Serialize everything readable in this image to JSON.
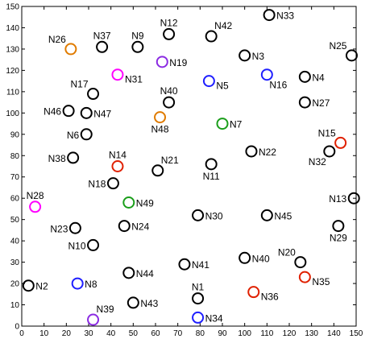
{
  "chart_data": {
    "type": "scatter",
    "title": "",
    "xlabel": "",
    "ylabel": "",
    "xlim": [
      0,
      150
    ],
    "ylim": [
      0,
      150
    ],
    "grid": false,
    "x_ticks": [
      0,
      10,
      20,
      30,
      40,
      50,
      60,
      70,
      80,
      90,
      100,
      110,
      120,
      130,
      140,
      150
    ],
    "y_ticks": [
      0,
      10,
      20,
      30,
      40,
      50,
      60,
      70,
      80,
      90,
      100,
      110,
      120,
      130,
      140,
      150
    ],
    "colors": {
      "black": "#000000",
      "orange": "#e07b00",
      "magenta": "#ff00ff",
      "purple": "#8b2be2",
      "blue": "#1f1fff",
      "green": "#1a9e1a",
      "red": "#e02000"
    },
    "points": [
      {
        "name": "N1",
        "x": 79,
        "y": 13,
        "color": "black",
        "label_pos": "above"
      },
      {
        "name": "N2",
        "x": 3,
        "y": 19,
        "color": "black",
        "label_pos": "right"
      },
      {
        "name": "N3",
        "x": 100,
        "y": 127,
        "color": "black",
        "label_pos": "right"
      },
      {
        "name": "N4",
        "x": 127,
        "y": 117,
        "color": "black",
        "label_pos": "right"
      },
      {
        "name": "N5",
        "x": 84,
        "y": 115,
        "color": "blue",
        "label_pos": "right-below"
      },
      {
        "name": "N6",
        "x": 29,
        "y": 90,
        "color": "black",
        "label_pos": "left"
      },
      {
        "name": "N7",
        "x": 90,
        "y": 95,
        "color": "green",
        "label_pos": "right"
      },
      {
        "name": "N8",
        "x": 25,
        "y": 20,
        "color": "blue",
        "label_pos": "right"
      },
      {
        "name": "N9",
        "x": 52,
        "y": 131,
        "color": "black",
        "label_pos": "above"
      },
      {
        "name": "N10",
        "x": 32,
        "y": 38,
        "color": "black",
        "label_pos": "left"
      },
      {
        "name": "N11",
        "x": 85,
        "y": 76,
        "color": "black",
        "label_pos": "below"
      },
      {
        "name": "N12",
        "x": 66,
        "y": 137,
        "color": "black",
        "label_pos": "above"
      },
      {
        "name": "N13",
        "x": 149,
        "y": 60,
        "color": "black",
        "label_pos": "left"
      },
      {
        "name": "N14",
        "x": 43,
        "y": 75,
        "color": "red",
        "label_pos": "above"
      },
      {
        "name": "N15",
        "x": 143,
        "y": 86,
        "color": "red",
        "label_pos": "above-left"
      },
      {
        "name": "N16",
        "x": 110,
        "y": 118,
        "color": "blue",
        "label_pos": "below-right"
      },
      {
        "name": "N17",
        "x": 32,
        "y": 109,
        "color": "black",
        "label_pos": "above-left"
      },
      {
        "name": "N18",
        "x": 41,
        "y": 67,
        "color": "black",
        "label_pos": "left"
      },
      {
        "name": "N19",
        "x": 63,
        "y": 124,
        "color": "purple",
        "label_pos": "right"
      },
      {
        "name": "N20",
        "x": 125,
        "y": 30,
        "color": "black",
        "label_pos": "above-left"
      },
      {
        "name": "N21",
        "x": 61,
        "y": 73,
        "color": "black",
        "label_pos": "above-right"
      },
      {
        "name": "N22",
        "x": 103,
        "y": 82,
        "color": "black",
        "label_pos": "right"
      },
      {
        "name": "N23",
        "x": 24,
        "y": 46,
        "color": "black",
        "label_pos": "left"
      },
      {
        "name": "N24",
        "x": 46,
        "y": 47,
        "color": "black",
        "label_pos": "right"
      },
      {
        "name": "N25",
        "x": 148,
        "y": 127,
        "color": "black",
        "label_pos": "above-left"
      },
      {
        "name": "N26",
        "x": 22,
        "y": 130,
        "color": "orange",
        "label_pos": "above-left"
      },
      {
        "name": "N27",
        "x": 127,
        "y": 105,
        "color": "black",
        "label_pos": "right"
      },
      {
        "name": "N28",
        "x": 6,
        "y": 56,
        "color": "magenta",
        "label_pos": "above"
      },
      {
        "name": "N29",
        "x": 142,
        "y": 47,
        "color": "black",
        "label_pos": "below"
      },
      {
        "name": "N30",
        "x": 79,
        "y": 52,
        "color": "black",
        "label_pos": "right"
      },
      {
        "name": "N31",
        "x": 43,
        "y": 118,
        "color": "magenta",
        "label_pos": "right-below"
      },
      {
        "name": "N32",
        "x": 138,
        "y": 82,
        "color": "black",
        "label_pos": "below-left"
      },
      {
        "name": "N33",
        "x": 111,
        "y": 146,
        "color": "black",
        "label_pos": "right"
      },
      {
        "name": "N34",
        "x": 79,
        "y": 4,
        "color": "blue",
        "label_pos": "right"
      },
      {
        "name": "N35",
        "x": 127,
        "y": 23,
        "color": "red",
        "label_pos": "right-below"
      },
      {
        "name": "N36",
        "x": 104,
        "y": 16,
        "color": "red",
        "label_pos": "right-below"
      },
      {
        "name": "N37",
        "x": 36,
        "y": 131,
        "color": "black",
        "label_pos": "above"
      },
      {
        "name": "N38",
        "x": 23,
        "y": 79,
        "color": "black",
        "label_pos": "left"
      },
      {
        "name": "N39",
        "x": 32,
        "y": 3,
        "color": "purple",
        "label_pos": "above-right"
      },
      {
        "name": "N40",
        "x": 66,
        "y": 105,
        "color": "black",
        "label_pos": "above"
      },
      {
        "name": "N40",
        "x": 100,
        "y": 32,
        "color": "black",
        "label_pos": "right"
      },
      {
        "name": "N41",
        "x": 73,
        "y": 29,
        "color": "black",
        "label_pos": "right"
      },
      {
        "name": "N42",
        "x": 85,
        "y": 136,
        "color": "black",
        "label_pos": "above-right"
      },
      {
        "name": "N43",
        "x": 50,
        "y": 11,
        "color": "black",
        "label_pos": "right"
      },
      {
        "name": "N44",
        "x": 48,
        "y": 25,
        "color": "black",
        "label_pos": "right"
      },
      {
        "name": "N45",
        "x": 110,
        "y": 52,
        "color": "black",
        "label_pos": "right"
      },
      {
        "name": "N46",
        "x": 21,
        "y": 101,
        "color": "black",
        "label_pos": "left"
      },
      {
        "name": "N47",
        "x": 29,
        "y": 100,
        "color": "black",
        "label_pos": "right"
      },
      {
        "name": "N48",
        "x": 62,
        "y": 98,
        "color": "orange",
        "label_pos": "below"
      },
      {
        "name": "N49",
        "x": 48,
        "y": 58,
        "color": "green",
        "label_pos": "right"
      }
    ]
  }
}
